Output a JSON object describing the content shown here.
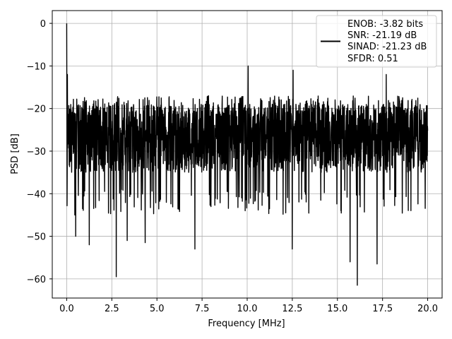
{
  "chart_data": {
    "type": "line",
    "title": "",
    "xlabel": "Frequency [MHz]",
    "ylabel": "PSD [dB]",
    "xlim": [
      -0.8,
      20.8
    ],
    "ylim": [
      -64.5,
      3.0
    ],
    "x_ticks": [
      0.0,
      2.5,
      5.0,
      7.5,
      10.0,
      12.5,
      15.0,
      17.5,
      20.0
    ],
    "x_tick_labels": [
      "0.0",
      "2.5",
      "5.0",
      "7.5",
      "10.0",
      "12.5",
      "15.0",
      "17.5",
      "20.0"
    ],
    "y_ticks": [
      0,
      -10,
      -20,
      -30,
      -40,
      -50,
      -60
    ],
    "y_tick_labels": [
      "0",
      "−10",
      "−20",
      "−30",
      "−40",
      "−50",
      "−60"
    ],
    "grid": true,
    "legend_position": "upper-right",
    "legend_lines": [
      "ENOB: -3.82 bits",
      "SNR: -21.19 dB",
      "SINAD: -21.23 dB",
      "SFDR: 0.51"
    ],
    "series": [
      {
        "color": "#000000",
        "x_range": [
          0.0,
          20.0
        ],
        "n_points": 2048,
        "noise_floor_median_db": -27,
        "upper_envelope_db": -17,
        "lower_envelope_db": -45,
        "features": [
          {
            "x": 0.0,
            "y": 0.0
          },
          {
            "x": 0.04,
            "y": -12.0
          },
          {
            "x": 0.45,
            "y": -45.0
          },
          {
            "x": 0.5,
            "y": -45.0
          },
          {
            "x": 0.5,
            "y": -50.0
          },
          {
            "x": 1.25,
            "y": -52.0
          },
          {
            "x": 2.75,
            "y": -59.5
          },
          {
            "x": 3.35,
            "y": -51.0
          },
          {
            "x": 4.35,
            "y": -51.5
          },
          {
            "x": 7.1,
            "y": -53.0
          },
          {
            "x": 10.05,
            "y": -10.0
          },
          {
            "x": 12.5,
            "y": -53.0
          },
          {
            "x": 12.55,
            "y": -11.0
          },
          {
            "x": 15.7,
            "y": -56.0
          },
          {
            "x": 16.1,
            "y": -61.5
          },
          {
            "x": 17.2,
            "y": -56.5
          },
          {
            "x": 17.7,
            "y": -12.0
          }
        ]
      }
    ]
  }
}
